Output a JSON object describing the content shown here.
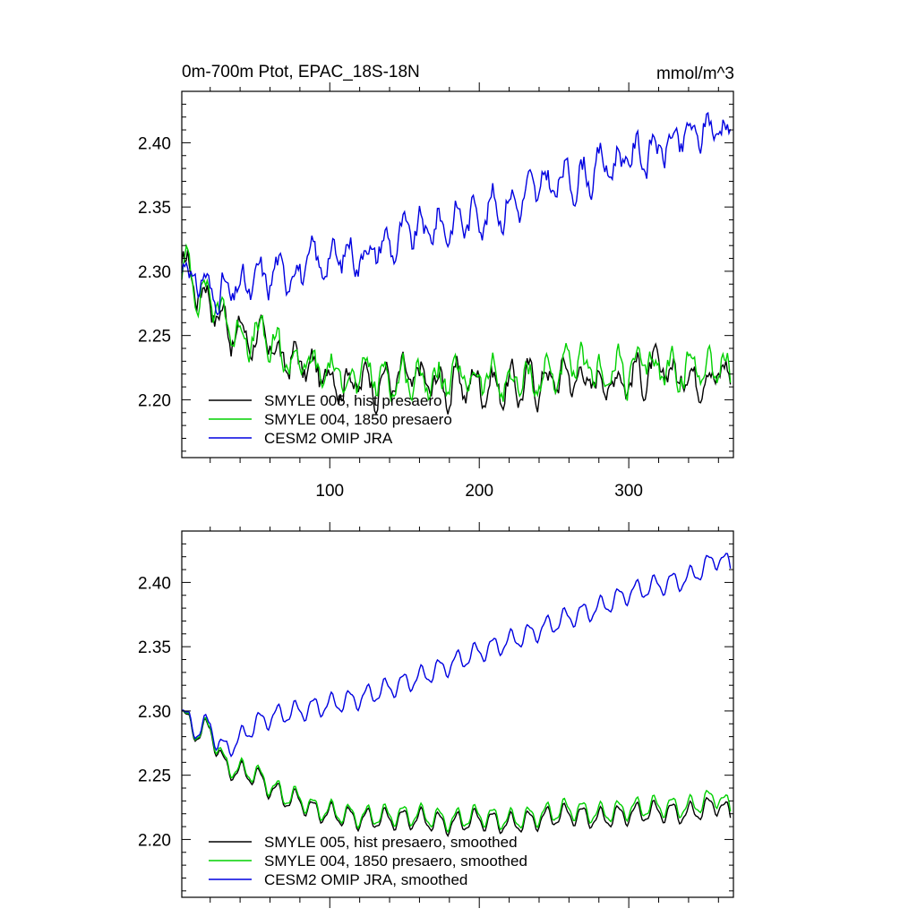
{
  "chart_data": [
    {
      "type": "line",
      "title": "0m-700m Ptot, EPAC_18S-18N",
      "units": "mmol/m^3",
      "xlim": [
        1,
        370
      ],
      "ylim": [
        2.155,
        2.44
      ],
      "xticks": [
        100,
        200,
        300
      ],
      "xtick_labels": [
        "100",
        "200",
        "300"
      ],
      "yticks": [
        2.2,
        2.25,
        2.3,
        2.35,
        2.4
      ],
      "ytick_labels": [
        "2.20",
        "2.25",
        "2.30",
        "2.35",
        "2.40"
      ],
      "legend_position": "bottom-left",
      "series": [
        {
          "name": "SMYLE 005, hist presaero",
          "color": "#000000",
          "x": [
            1,
            5,
            10,
            20,
            30,
            40,
            50,
            60,
            70,
            80,
            90,
            100,
            120,
            140,
            160,
            180,
            200,
            220,
            240,
            260,
            280,
            300,
            320,
            340,
            360,
            368
          ],
          "y": [
            2.305,
            2.3,
            2.29,
            2.28,
            2.26,
            2.25,
            2.25,
            2.24,
            2.23,
            2.23,
            2.22,
            2.22,
            2.215,
            2.215,
            2.215,
            2.21,
            2.215,
            2.21,
            2.215,
            2.22,
            2.215,
            2.22,
            2.22,
            2.22,
            2.225,
            2.215
          ]
        },
        {
          "name": "SMYLE 004, 1850 presaero",
          "color": "#00d000",
          "x": [
            1,
            5,
            10,
            20,
            30,
            40,
            50,
            60,
            70,
            80,
            90,
            100,
            120,
            140,
            160,
            180,
            200,
            220,
            240,
            260,
            280,
            300,
            320,
            340,
            360,
            368
          ],
          "y": [
            2.305,
            2.3,
            2.292,
            2.281,
            2.262,
            2.252,
            2.252,
            2.242,
            2.232,
            2.232,
            2.222,
            2.222,
            2.217,
            2.218,
            2.218,
            2.213,
            2.218,
            2.213,
            2.218,
            2.224,
            2.219,
            2.224,
            2.224,
            2.225,
            2.23,
            2.22
          ]
        },
        {
          "name": "CESM2 OMIP JRA",
          "color": "#0000e0",
          "x": [
            1,
            5,
            10,
            20,
            30,
            40,
            50,
            60,
            70,
            80,
            90,
            100,
            120,
            140,
            160,
            180,
            200,
            220,
            240,
            260,
            280,
            300,
            320,
            340,
            360,
            368
          ],
          "y": [
            2.305,
            2.3,
            2.295,
            2.285,
            2.283,
            2.284,
            2.29,
            2.297,
            2.3,
            2.303,
            2.305,
            2.31,
            2.315,
            2.322,
            2.33,
            2.338,
            2.346,
            2.354,
            2.363,
            2.372,
            2.38,
            2.39,
            2.395,
            2.403,
            2.415,
            2.41
          ]
        }
      ]
    },
    {
      "type": "line",
      "title": "",
      "xlim": [
        1,
        370
      ],
      "ylim": [
        2.155,
        2.44
      ],
      "xticks": [
        100,
        200,
        300
      ],
      "xtick_labels": [],
      "yticks": [
        2.2,
        2.25,
        2.3,
        2.35,
        2.4
      ],
      "ytick_labels": [
        "2.20",
        "2.25",
        "2.30",
        "2.35",
        "2.40"
      ],
      "legend_position": "bottom-left",
      "series": [
        {
          "name": "SMYLE 005, hist presaero, smoothed",
          "color": "#000000",
          "x": [
            1,
            5,
            10,
            20,
            25,
            30,
            40,
            50,
            60,
            70,
            80,
            90,
            100,
            120,
            140,
            160,
            180,
            200,
            220,
            240,
            260,
            280,
            300,
            320,
            340,
            360,
            368
          ],
          "y": [
            2.302,
            2.29,
            2.283,
            2.286,
            2.27,
            2.256,
            2.252,
            2.25,
            2.24,
            2.232,
            2.23,
            2.222,
            2.22,
            2.216,
            2.216,
            2.216,
            2.212,
            2.216,
            2.212,
            2.216,
            2.22,
            2.216,
            2.22,
            2.222,
            2.22,
            2.228,
            2.218
          ]
        },
        {
          "name": "SMYLE 004, 1850 presaero, smoothed",
          "color": "#00d000",
          "x": [
            1,
            5,
            10,
            20,
            25,
            30,
            40,
            50,
            60,
            70,
            80,
            90,
            100,
            120,
            140,
            160,
            180,
            200,
            220,
            240,
            260,
            280,
            300,
            320,
            340,
            360,
            368
          ],
          "y": [
            2.302,
            2.291,
            2.284,
            2.287,
            2.272,
            2.258,
            2.254,
            2.252,
            2.242,
            2.234,
            2.232,
            2.224,
            2.222,
            2.218,
            2.219,
            2.219,
            2.215,
            2.219,
            2.215,
            2.219,
            2.224,
            2.22,
            2.224,
            2.226,
            2.225,
            2.234,
            2.223
          ]
        },
        {
          "name": "CESM2 OMIP JRA, smoothed",
          "color": "#0000e0",
          "x": [
            1,
            5,
            10,
            20,
            25,
            30,
            40,
            50,
            60,
            70,
            80,
            90,
            100,
            120,
            140,
            160,
            180,
            200,
            220,
            240,
            260,
            280,
            300,
            320,
            340,
            360,
            368
          ],
          "y": [
            2.302,
            2.292,
            2.285,
            2.29,
            2.275,
            2.27,
            2.278,
            2.29,
            2.295,
            2.298,
            2.3,
            2.303,
            2.305,
            2.31,
            2.318,
            2.326,
            2.336,
            2.346,
            2.354,
            2.363,
            2.373,
            2.38,
            2.392,
            2.398,
            2.403,
            2.42,
            2.412
          ]
        }
      ]
    }
  ]
}
